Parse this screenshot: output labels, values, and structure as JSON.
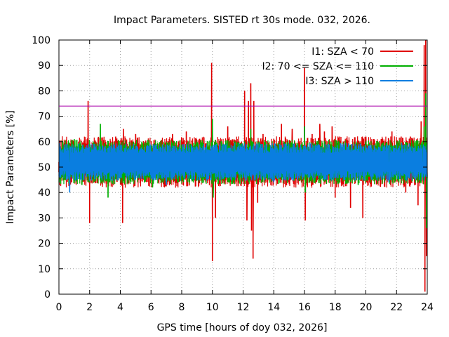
{
  "chart_data": {
    "type": "line",
    "title": "Impact Parameters. SISTED rt 30s mode. 032, 2026.",
    "xlabel": "GPS time [hours of doy 032, 2026]",
    "ylabel": "Impact Parameters [%]",
    "xlim": [
      0,
      24
    ],
    "ylim": [
      0,
      100
    ],
    "x_ticks": [
      0,
      2,
      4,
      6,
      8,
      10,
      12,
      14,
      16,
      18,
      20,
      22,
      24
    ],
    "y_ticks": [
      0,
      10,
      20,
      30,
      40,
      50,
      60,
      70,
      80,
      90,
      100
    ],
    "grid": true,
    "legend_position": "top-right",
    "threshold_line": {
      "value": 74,
      "color": "#aa00aa"
    },
    "series": [
      {
        "name": "I1: SZA < 70",
        "color": "#e00000",
        "baseline": 52,
        "noise_low": 44,
        "noise_high": 59,
        "spikes": [
          {
            "x": 0.0,
            "y": 48
          },
          {
            "x": 1.9,
            "y": 76
          },
          {
            "x": 2.0,
            "y": 28
          },
          {
            "x": 3.3,
            "y": 45
          },
          {
            "x": 3.7,
            "y": 62
          },
          {
            "x": 4.15,
            "y": 28
          },
          {
            "x": 4.2,
            "y": 65
          },
          {
            "x": 5.0,
            "y": 63
          },
          {
            "x": 6.5,
            "y": 44
          },
          {
            "x": 7.4,
            "y": 63
          },
          {
            "x": 8.3,
            "y": 64
          },
          {
            "x": 9.5,
            "y": 45
          },
          {
            "x": 9.95,
            "y": 91
          },
          {
            "x": 10.0,
            "y": 13
          },
          {
            "x": 10.05,
            "y": 42
          },
          {
            "x": 10.2,
            "y": 30
          },
          {
            "x": 11.0,
            "y": 66
          },
          {
            "x": 11.9,
            "y": 60
          },
          {
            "x": 12.1,
            "y": 80
          },
          {
            "x": 12.25,
            "y": 29
          },
          {
            "x": 12.35,
            "y": 76
          },
          {
            "x": 12.5,
            "y": 83
          },
          {
            "x": 12.55,
            "y": 25
          },
          {
            "x": 12.65,
            "y": 14
          },
          {
            "x": 12.7,
            "y": 76
          },
          {
            "x": 12.95,
            "y": 36
          },
          {
            "x": 13.3,
            "y": 63
          },
          {
            "x": 14.5,
            "y": 67
          },
          {
            "x": 15.2,
            "y": 65
          },
          {
            "x": 15.8,
            "y": 44
          },
          {
            "x": 16.0,
            "y": 89
          },
          {
            "x": 16.05,
            "y": 29
          },
          {
            "x": 16.5,
            "y": 63
          },
          {
            "x": 17.0,
            "y": 67
          },
          {
            "x": 17.3,
            "y": 64
          },
          {
            "x": 17.8,
            "y": 66
          },
          {
            "x": 18.0,
            "y": 38
          },
          {
            "x": 18.3,
            "y": 62
          },
          {
            "x": 19.0,
            "y": 34
          },
          {
            "x": 19.8,
            "y": 30
          },
          {
            "x": 20.0,
            "y": 62
          },
          {
            "x": 20.5,
            "y": 61
          },
          {
            "x": 21.0,
            "y": 61
          },
          {
            "x": 21.7,
            "y": 64
          },
          {
            "x": 22.0,
            "y": 60
          },
          {
            "x": 22.3,
            "y": 62
          },
          {
            "x": 22.6,
            "y": 40
          },
          {
            "x": 22.9,
            "y": 62
          },
          {
            "x": 23.2,
            "y": 56
          },
          {
            "x": 23.4,
            "y": 35
          },
          {
            "x": 23.6,
            "y": 68
          },
          {
            "x": 23.75,
            "y": 55
          },
          {
            "x": 23.8,
            "y": 98
          },
          {
            "x": 23.85,
            "y": 1
          },
          {
            "x": 23.9,
            "y": 100
          },
          {
            "x": 23.95,
            "y": 15
          }
        ]
      },
      {
        "name": "I2: 70 <= SZA <= 110",
        "color": "#00b000",
        "baseline": 52,
        "noise_low": 45,
        "noise_high": 58,
        "spikes": [
          {
            "x": 1.0,
            "y": 61
          },
          {
            "x": 1.5,
            "y": 43
          },
          {
            "x": 2.7,
            "y": 67
          },
          {
            "x": 3.2,
            "y": 38
          },
          {
            "x": 5.4,
            "y": 60
          },
          {
            "x": 6.1,
            "y": 42
          },
          {
            "x": 10.0,
            "y": 69
          },
          {
            "x": 10.05,
            "y": 38
          },
          {
            "x": 11.5,
            "y": 60
          },
          {
            "x": 12.5,
            "y": 65
          },
          {
            "x": 16.0,
            "y": 66
          },
          {
            "x": 16.05,
            "y": 40
          },
          {
            "x": 19.5,
            "y": 43
          },
          {
            "x": 23.8,
            "y": 66
          },
          {
            "x": 23.9,
            "y": 79
          },
          {
            "x": 23.95,
            "y": 26
          }
        ]
      },
      {
        "name": "I3: SZA > 110",
        "color": "#0a7ee0",
        "baseline": 52,
        "noise_low": 46,
        "noise_high": 57,
        "spikes": [
          {
            "x": 0.7,
            "y": 40
          },
          {
            "x": 7.0,
            "y": 43
          },
          {
            "x": 14.0,
            "y": 44
          },
          {
            "x": 21.5,
            "y": 44
          },
          {
            "x": 23.7,
            "y": 46
          }
        ]
      }
    ]
  }
}
